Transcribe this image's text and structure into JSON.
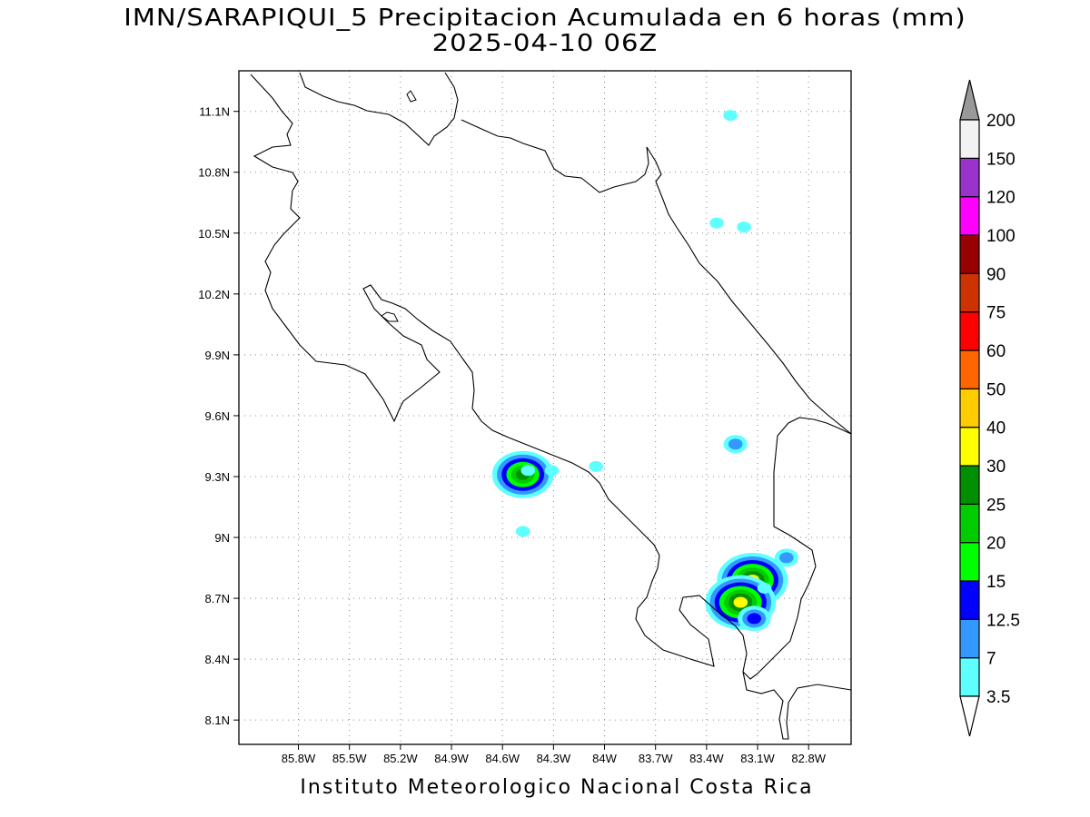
{
  "title_line1": "IMN/SARAPIQUI_5 Precipitacion Acumulada en 6 horas (mm)",
  "title_line2": "2025-04-10 06Z",
  "footer": "Instituto Meteorologico Nacional Costa Rica",
  "map": {
    "lon_range": [
      -86.15,
      -82.55
    ],
    "lat_range": [
      7.98,
      11.3
    ],
    "lon_ticks": [
      -85.8,
      -85.5,
      -85.2,
      -84.9,
      -84.6,
      -84.3,
      -84.0,
      -83.7,
      -83.4,
      -83.1,
      -82.8
    ],
    "lon_tick_labels": [
      "85.8W",
      "85.5W",
      "85.2W",
      "84.9W",
      "84.6W",
      "84.3W",
      "84W",
      "83.7W",
      "83.4W",
      "83.1W",
      "82.8W"
    ],
    "lat_ticks": [
      8.1,
      8.4,
      8.7,
      9.0,
      9.3,
      9.6,
      9.9,
      10.2,
      10.5,
      10.8,
      11.1
    ],
    "lat_tick_labels": [
      "8.1N",
      "8.4N",
      "8.7N",
      "9N",
      "9.3N",
      "9.6N",
      "9.9N",
      "10.2N",
      "10.5N",
      "10.8N",
      "11.1N"
    ],
    "grid": "dotted"
  },
  "colorbar": {
    "labels": [
      "3.5",
      "7",
      "12.5",
      "15",
      "20",
      "25",
      "30",
      "40",
      "50",
      "60",
      "75",
      "90",
      "100",
      "120",
      "150",
      "200"
    ],
    "colors": [
      "#5effff",
      "#3399ff",
      "#0000ff",
      "#00ff00",
      "#00cc00",
      "#008f00",
      "#ffff00",
      "#ffcc00",
      "#ff6600",
      "#ff0000",
      "#cc3300",
      "#990000",
      "#ff00ff",
      "#9933cc",
      "#f2f2f2",
      "#999999"
    ],
    "below_color": "#ffffff"
  },
  "precip_cells": [
    {
      "lon": -84.48,
      "lat": 9.31,
      "mm": 25
    },
    {
      "lon": -84.45,
      "lat": 9.33,
      "mm": 3.5
    },
    {
      "lon": -84.31,
      "lat": 9.33,
      "mm": 3.5
    },
    {
      "lon": -84.05,
      "lat": 9.35,
      "mm": 3.5
    },
    {
      "lon": -84.48,
      "lat": 9.03,
      "mm": 3.5
    },
    {
      "lon": -83.23,
      "lat": 9.46,
      "mm": 7
    },
    {
      "lon": -82.93,
      "lat": 8.9,
      "mm": 7
    },
    {
      "lon": -83.13,
      "lat": 8.79,
      "mm": 30
    },
    {
      "lon": -83.2,
      "lat": 8.68,
      "mm": 30
    },
    {
      "lon": -83.12,
      "lat": 8.6,
      "mm": 12.5
    },
    {
      "lon": -83.06,
      "lat": 8.75,
      "mm": 3.5
    },
    {
      "lon": -83.26,
      "lat": 11.08,
      "mm": 3.5
    },
    {
      "lon": -83.18,
      "lat": 10.53,
      "mm": 3.5
    },
    {
      "lon": -83.34,
      "lat": 10.55,
      "mm": 3.5
    }
  ]
}
